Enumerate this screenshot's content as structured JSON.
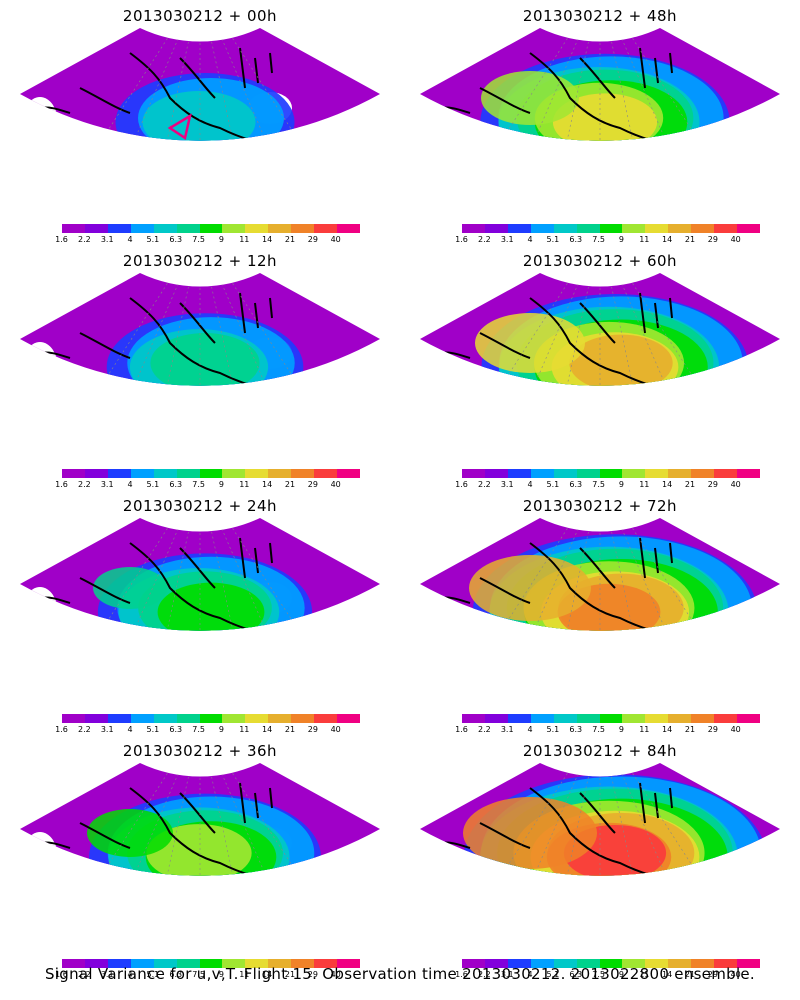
{
  "figure": {
    "caption": "Signal Variance for u,v,T. Flight 15. Observation time 2013030212. 2013022800 ensemble."
  },
  "colorbar": {
    "labels": [
      "1.6",
      "2.2",
      "3.1",
      "4",
      "5.1",
      "6.3",
      "7.5",
      "9",
      "11",
      "14",
      "21",
      "29",
      "40"
    ],
    "colors": [
      "#a000c8",
      "#8200dc",
      "#1e3cff",
      "#00a0ff",
      "#00c8c8",
      "#00d28c",
      "#00dc00",
      "#a0e632",
      "#e6dc32",
      "#e6af2d",
      "#f08228",
      "#fa3c3c",
      "#f00082"
    ]
  },
  "panels": [
    {
      "title": "2013030212 + 00h",
      "lead_hours": 0
    },
    {
      "title": "2013030212 + 48h",
      "lead_hours": 48
    },
    {
      "title": "2013030212 + 12h",
      "lead_hours": 12
    },
    {
      "title": "2013030212 + 60h",
      "lead_hours": 60
    },
    {
      "title": "2013030212 + 24h",
      "lead_hours": 24
    },
    {
      "title": "2013030212 + 72h",
      "lead_hours": 72
    },
    {
      "title": "2013030212 + 36h",
      "lead_hours": 36
    },
    {
      "title": "2013030212 + 84h",
      "lead_hours": 84
    }
  ]
}
